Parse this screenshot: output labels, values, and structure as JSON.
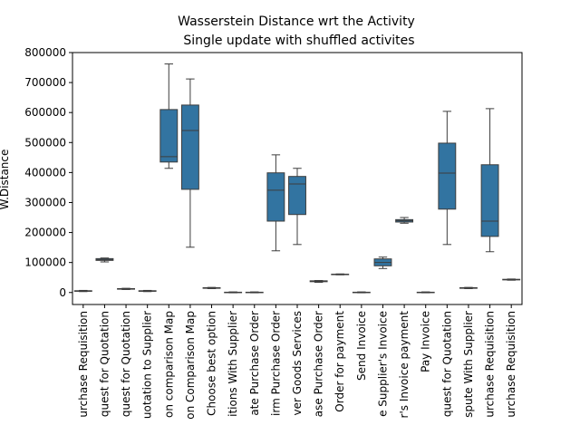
{
  "chart_data": {
    "type": "box",
    "title": "Wasserstein Distance wrt the Activity",
    "subtitle": "Single update with shuffled activites",
    "y_label": "W.Distance",
    "color": "#3274a1",
    "categories": [
      "urchase Requisition",
      "quest for Quotation",
      "quest for Quotation",
      "uotation to Supplier",
      "on comparison Map",
      "on Comparison Map",
      "Choose best option",
      "itions With Supplier",
      "ate Purchase Order",
      "irm Purchase Order",
      "ver Goods Services",
      "ase Purchase Order",
      "Order for payment",
      "Send Invoice",
      "e Supplier's Invoice",
      "r's Invoice payment",
      "Pay Invoice",
      "quest for Quotation",
      "spute With Supplier",
      "urchase Requisition",
      "urchase Requisition"
    ],
    "boxes": [
      {
        "min": 3000,
        "q1": 4000,
        "median": 5000,
        "q3": 6000,
        "max": 7000
      },
      {
        "min": 102000,
        "q1": 107000,
        "median": 110000,
        "q3": 113000,
        "max": 115000
      },
      {
        "min": 10000,
        "q1": 11000,
        "median": 12000,
        "q3": 13000,
        "max": 14000
      },
      {
        "min": 3000,
        "q1": 4000,
        "median": 5000,
        "q3": 6000,
        "max": 7000
      },
      {
        "min": 414000,
        "q1": 435000,
        "median": 453000,
        "q3": 610000,
        "max": 762000
      },
      {
        "min": 151000,
        "q1": 344000,
        "median": 540000,
        "q3": 625000,
        "max": 712000
      },
      {
        "min": 13000,
        "q1": 14000,
        "median": 15000,
        "q3": 16000,
        "max": 17000
      },
      {
        "min": -1000,
        "q1": 0,
        "median": 500,
        "q3": 1000,
        "max": 2000
      },
      {
        "min": -1000,
        "q1": 0,
        "median": 500,
        "q3": 1000,
        "max": 2000
      },
      {
        "min": 139000,
        "q1": 238000,
        "median": 341000,
        "q3": 399000,
        "max": 459000
      },
      {
        "min": 160000,
        "q1": 260000,
        "median": 362000,
        "q3": 387000,
        "max": 414000
      },
      {
        "min": 34000,
        "q1": 36000,
        "median": 37000,
        "q3": 39000,
        "max": 40000
      },
      {
        "min": 59000,
        "q1": 60000,
        "median": 60500,
        "q3": 61000,
        "max": 62000
      },
      {
        "min": -1000,
        "q1": 0,
        "median": 500,
        "q3": 1000,
        "max": 2000
      },
      {
        "min": 80000,
        "q1": 89000,
        "median": 100000,
        "q3": 112000,
        "max": 118000
      },
      {
        "min": 231000,
        "q1": 235000,
        "median": 239000,
        "q3": 243000,
        "max": 250000
      },
      {
        "min": -1000,
        "q1": 0,
        "median": 500,
        "q3": 1000,
        "max": 2000
      },
      {
        "min": 160000,
        "q1": 278000,
        "median": 398000,
        "q3": 498000,
        "max": 604000
      },
      {
        "min": 13000,
        "q1": 14000,
        "median": 15000,
        "q3": 16000,
        "max": 17000
      },
      {
        "min": 136000,
        "q1": 187000,
        "median": 238000,
        "q3": 426000,
        "max": 613000
      },
      {
        "min": 41000,
        "q1": 42000,
        "median": 43000,
        "q3": 44000,
        "max": 45000
      }
    ],
    "ylim": [
      -40000,
      800000
    ],
    "yticks": [
      0,
      100000,
      200000,
      300000,
      400000,
      500000,
      600000,
      700000,
      800000
    ]
  }
}
